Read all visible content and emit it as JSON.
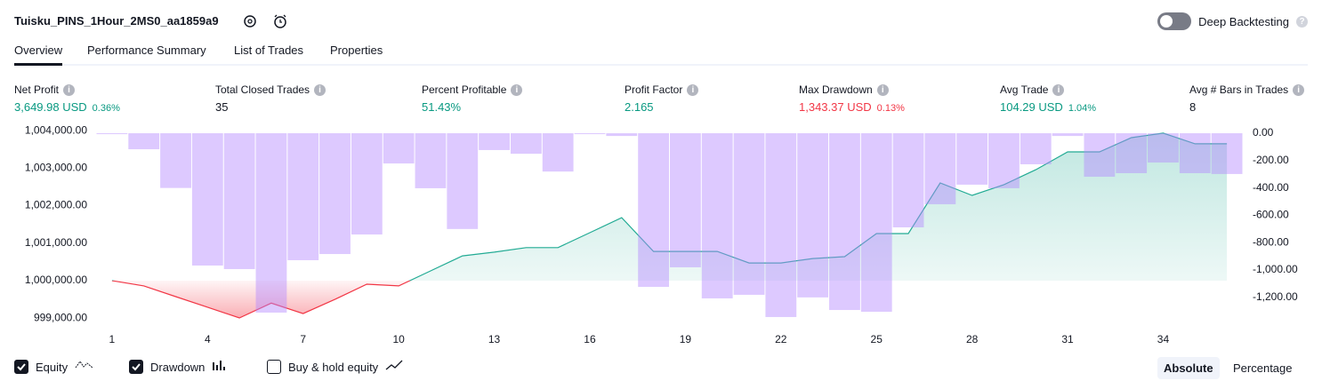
{
  "header": {
    "title": "Tuisku_PINS_1Hour_2MS0_aa1859a9",
    "deep_backtesting": {
      "label": "Deep Backtesting",
      "enabled": false
    }
  },
  "tabs": {
    "items": [
      "Overview",
      "Performance Summary",
      "List of Trades",
      "Properties"
    ],
    "active": 0
  },
  "metrics": [
    {
      "label": "Net Profit",
      "value": "3,649.98 USD",
      "percent": "0.36%",
      "tone": "positive"
    },
    {
      "label": "Total Closed Trades",
      "value": "35",
      "tone": "neutral"
    },
    {
      "label": "Percent Profitable",
      "value": "51.43%",
      "tone": "positive"
    },
    {
      "label": "Profit Factor",
      "value": "2.165",
      "tone": "positive"
    },
    {
      "label": "Max Drawdown",
      "value": "1,343.37 USD",
      "percent": "0.13%",
      "tone": "negative"
    },
    {
      "label": "Avg Trade",
      "value": "104.29 USD",
      "percent": "1.04%",
      "tone": "positive"
    },
    {
      "label": "Avg # Bars in Trades",
      "value": "8",
      "tone": "neutral"
    }
  ],
  "chart_data": {
    "type": "combo",
    "x": [
      1,
      2,
      3,
      4,
      5,
      6,
      7,
      8,
      9,
      10,
      11,
      12,
      13,
      14,
      15,
      16,
      17,
      18,
      19,
      20,
      21,
      22,
      23,
      24,
      25,
      26,
      27,
      28,
      29,
      30,
      31,
      32,
      33,
      34,
      35,
      36
    ],
    "xlim": [
      0.5,
      36.5
    ],
    "xticks": [
      1,
      4,
      7,
      10,
      13,
      16,
      19,
      22,
      25,
      28,
      31,
      34
    ],
    "ylim": [
      998720,
      1004170
    ],
    "yticks": [
      {
        "value": 999000,
        "label": "999,000.00"
      },
      {
        "value": 1000000,
        "label": "1,000,000.00"
      },
      {
        "value": 1001000,
        "label": "1,001,000.00"
      },
      {
        "value": 1002000,
        "label": "1,002,000.00"
      },
      {
        "value": 1003000,
        "label": "1,003,000.00"
      },
      {
        "value": 1004000,
        "label": "1,004,000.00"
      }
    ],
    "y2lim": [
      -1428,
      65
    ],
    "y2ticks": [
      {
        "value": 0,
        "label": "0.00"
      },
      {
        "value": -200,
        "label": "-200.00"
      },
      {
        "value": -400,
        "label": "-400.00"
      },
      {
        "value": -600,
        "label": "-600.00"
      },
      {
        "value": -800,
        "label": "-800.00"
      },
      {
        "value": -1000,
        "label": "-1,000.00"
      },
      {
        "value": -1200,
        "label": "-1,200.00"
      }
    ],
    "grid": false,
    "series": [
      {
        "name": "Equity",
        "type": "area",
        "color": "#22ab94",
        "negative_color": "#f23645",
        "checked": true,
        "values": [
          1000000,
          999860,
          999573,
          999290,
          999005,
          999400,
          999120,
          999500,
          999905,
          999860,
          1000260,
          1000660,
          1000760,
          1000880,
          1000880,
          1001280,
          1001680,
          1000780,
          1000780,
          1000780,
          1000470,
          1000470,
          1000590,
          1000640,
          1001255,
          1001255,
          1002605,
          1002275,
          1002560,
          1002960,
          1003435,
          1003435,
          1003815,
          1003935,
          1003650,
          1003649.98
        ]
      },
      {
        "name": "Drawdown",
        "type": "bar",
        "axis": "y2",
        "color": "#b388ff",
        "checked": true,
        "values": [
          -5,
          -117,
          -400,
          -967,
          -993,
          -1311,
          -928,
          -883,
          -740,
          -221,
          -402,
          -700,
          -123,
          -150,
          -280,
          0,
          -20,
          -1123,
          -980,
          -1207,
          -1181,
          -1343.37,
          -1200,
          -1292,
          -1305,
          -688,
          -519,
          -376,
          -402,
          -227,
          -20,
          -318,
          -292,
          -214,
          -292,
          -298
        ]
      }
    ],
    "extra_toggle": {
      "label": "Buy & hold equity",
      "checked": false
    },
    "scale_modes": [
      "Absolute",
      "Percentage"
    ],
    "scale_mode": 0
  }
}
